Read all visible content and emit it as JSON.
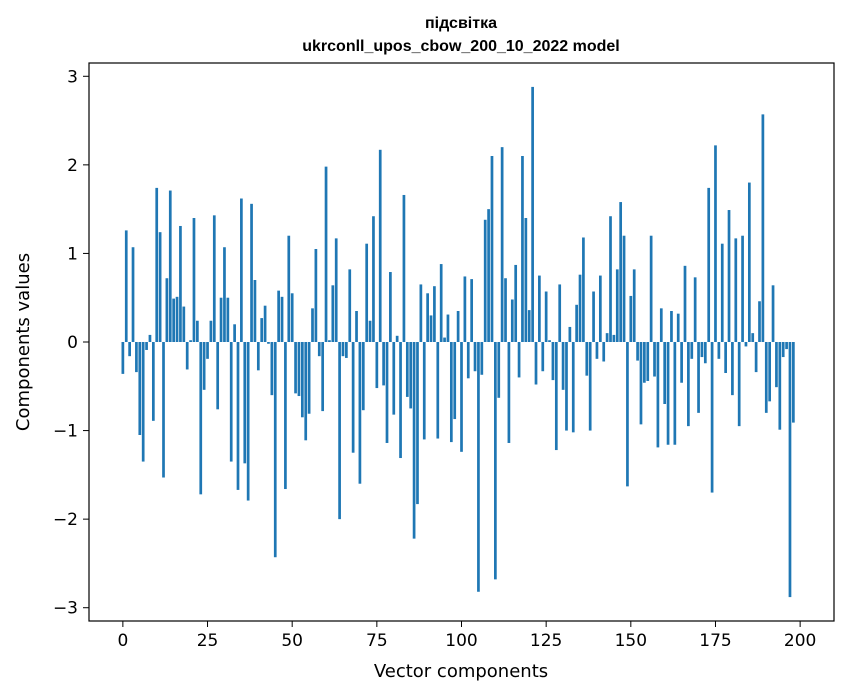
{
  "chart_data": {
    "type": "bar",
    "title_line1": "підсвітка",
    "title_line2": "ukrconll_upos_cbow_200_10_2022 model",
    "xlabel": "Vector components",
    "ylabel": "Components values",
    "xlim": [
      -10,
      210
    ],
    "ylim": [
      -3.15,
      3.15
    ],
    "xticks": [
      0,
      25,
      50,
      75,
      100,
      125,
      150,
      175,
      200
    ],
    "yticks": [
      -3,
      -2,
      -1,
      0,
      1,
      2,
      3
    ],
    "ytick_labels": [
      "−3",
      "−2",
      "−1",
      "0",
      "1",
      "2",
      "3"
    ],
    "bar_color": "#1f77b4",
    "grid": false,
    "values": [
      -0.36,
      1.26,
      -0.16,
      1.07,
      -0.34,
      -1.05,
      -1.35,
      -0.09,
      0.08,
      -0.89,
      1.74,
      1.24,
      -1.53,
      0.72,
      1.71,
      0.49,
      0.51,
      1.31,
      0.4,
      -0.31,
      0.02,
      1.4,
      0.24,
      -1.72,
      -0.54,
      -0.19,
      0.24,
      1.43,
      -0.76,
      0.5,
      1.07,
      0.5,
      -1.35,
      0.2,
      -1.67,
      1.62,
      -1.37,
      -1.79,
      1.56,
      0.7,
      -0.32,
      0.27,
      0.41,
      -0.02,
      -0.6,
      -2.43,
      0.58,
      0.51,
      -1.66,
      1.2,
      0.55,
      -0.58,
      -0.61,
      -0.85,
      -1.11,
      -0.81,
      0.38,
      1.05,
      -0.16,
      -0.78,
      1.98,
      0.02,
      0.64,
      1.17,
      -2.0,
      -0.16,
      -0.18,
      0.82,
      -1.25,
      0.35,
      -1.6,
      -0.77,
      1.11,
      0.24,
      1.42,
      -0.52,
      2.17,
      -0.49,
      -1.14,
      0.79,
      -0.82,
      0.07,
      -1.31,
      1.66,
      -0.62,
      -0.75,
      -2.22,
      -1.83,
      0.65,
      -1.1,
      0.55,
      0.3,
      0.63,
      -1.09,
      0.88,
      0.05,
      0.31,
      -1.13,
      -0.87,
      0.35,
      -1.24,
      0.74,
      -0.41,
      0.71,
      -0.33,
      -2.82,
      -0.37,
      1.38,
      1.5,
      2.1,
      -2.68,
      -0.63,
      2.2,
      0.72,
      -1.14,
      0.48,
      0.87,
      -0.4,
      2.1,
      1.4,
      0.36,
      2.88,
      -0.48,
      0.75,
      -0.33,
      0.57,
      0.02,
      -0.43,
      -1.22,
      0.65,
      -0.54,
      -1.0,
      0.17,
      -1.02,
      0.42,
      0.76,
      1.18,
      -0.38,
      -1.0,
      0.57,
      -0.19,
      0.75,
      -0.22,
      0.1,
      1.42,
      0.08,
      0.82,
      1.58,
      1.2,
      -1.63,
      0.52,
      0.82,
      -0.21,
      -0.93,
      -0.46,
      -0.44,
      1.2,
      -0.39,
      -1.19,
      0.38,
      -0.7,
      -1.16,
      0.35,
      -1.16,
      0.32,
      -0.46,
      0.86,
      -0.95,
      -0.19,
      0.73,
      -0.8,
      -0.17,
      -0.24,
      1.74,
      -1.7,
      2.22,
      -0.19,
      1.11,
      -0.35,
      1.49,
      -0.6,
      1.17,
      -0.95,
      1.2,
      -0.05,
      1.8,
      0.1,
      -0.34,
      0.46,
      2.57,
      -0.8,
      -0.67,
      0.64,
      -0.51,
      -0.99,
      -0.17,
      -0.08,
      -2.88,
      -0.91
    ]
  }
}
